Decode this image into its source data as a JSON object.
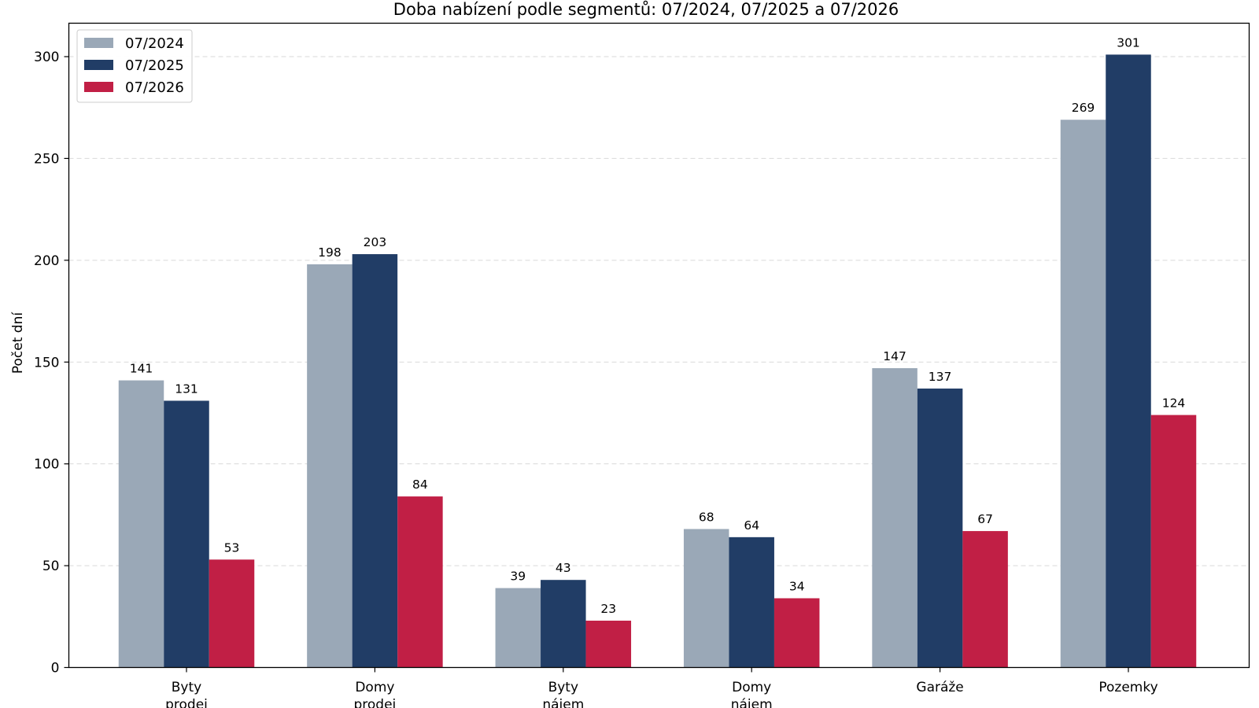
{
  "chart_data": {
    "type": "bar",
    "title": "Doba nabízení podle segmentů: 07/2024, 07/2025 a 07/2026",
    "xlabel": "",
    "ylabel": "Počet dní",
    "ylim": [
      0,
      315
    ],
    "yticks": [
      0,
      50,
      100,
      150,
      200,
      250,
      300
    ],
    "grid": "horizontal-dashed",
    "legend_position": "top-left",
    "categories": [
      [
        "Byty",
        "prodej"
      ],
      [
        "Domy",
        "prodej"
      ],
      [
        "Byty",
        "nájem"
      ],
      [
        "Domy",
        "nájem"
      ],
      [
        "Garáže"
      ],
      [
        "Pozemky"
      ]
    ],
    "series": [
      {
        "name": "07/2024",
        "color": "#9aa8b7",
        "values": [
          141,
          198,
          39,
          68,
          147,
          269
        ]
      },
      {
        "name": "07/2025",
        "color": "#213d66",
        "values": [
          131,
          203,
          43,
          64,
          137,
          301
        ]
      },
      {
        "name": "07/2026",
        "color": "#c11f45",
        "values": [
          53,
          84,
          23,
          34,
          67,
          124
        ]
      }
    ]
  }
}
